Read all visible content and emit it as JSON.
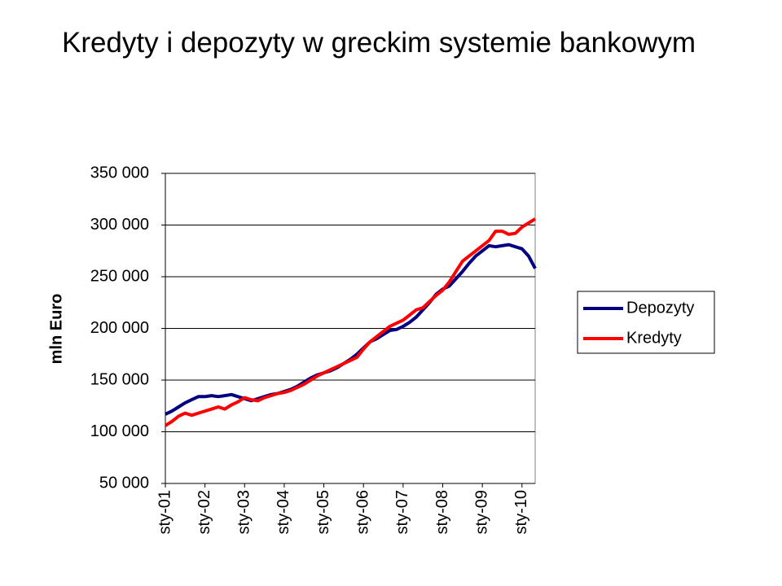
{
  "chart_data": {
    "type": "line",
    "title": "Kredyty i depozyty w greckim systemie bankowym",
    "y_label": "mln Euro",
    "categories": [
      "sty-01",
      null,
      null,
      null,
      null,
      null,
      "sty-02",
      null,
      null,
      null,
      null,
      null,
      "sty-03",
      null,
      null,
      null,
      null,
      null,
      "sty-04",
      null,
      null,
      null,
      null,
      null,
      "sty-05",
      null,
      null,
      null,
      null,
      null,
      "sty-06",
      null,
      null,
      null,
      null,
      null,
      "sty-07",
      null,
      null,
      null,
      null,
      null,
      "sty-08",
      null,
      null,
      null,
      null,
      null,
      "sty-09",
      null,
      null,
      null,
      null,
      null,
      "sty-10",
      null,
      null
    ],
    "series": [
      {
        "name": "Depozyty",
        "color": "#000080",
        "values": [
          117000,
          120000,
          124000,
          128000,
          131000,
          134000,
          134000,
          135000,
          134000,
          135000,
          136000,
          134000,
          132000,
          130000,
          132000,
          134000,
          136000,
          137000,
          139000,
          141000,
          144000,
          148000,
          152000,
          155000,
          157000,
          159000,
          162000,
          166000,
          170000,
          175000,
          181000,
          187000,
          190000,
          194000,
          198000,
          199000,
          202000,
          206000,
          211000,
          218000,
          225000,
          233000,
          238000,
          241000,
          248000,
          255000,
          263000,
          270000,
          275000,
          280000,
          279000,
          280000,
          281000,
          279000,
          277000,
          270000,
          258000
        ]
      },
      {
        "name": "Kredyty",
        "color": "#ff0000",
        "values": [
          106000,
          110000,
          115000,
          118000,
          116000,
          118000,
          120000,
          122000,
          124000,
          122000,
          126000,
          129000,
          133000,
          131000,
          130000,
          133000,
          135000,
          137000,
          138000,
          140000,
          143000,
          146000,
          150000,
          154000,
          157000,
          160000,
          163000,
          166000,
          169000,
          172000,
          180000,
          187000,
          192000,
          197000,
          202000,
          205000,
          208000,
          213000,
          218000,
          220000,
          226000,
          232000,
          237000,
          245000,
          255000,
          265000,
          270000,
          275000,
          280000,
          285000,
          294000,
          294000,
          291000,
          292000,
          298000,
          302000,
          306000
        ]
      }
    ],
    "ylim": [
      50000,
      350000
    ],
    "yticks": [
      {
        "value": 50000,
        "label": "50 000"
      },
      {
        "value": 100000,
        "label": "100 000"
      },
      {
        "value": 150000,
        "label": "150 000"
      },
      {
        "value": 200000,
        "label": "200 000"
      },
      {
        "value": 250000,
        "label": "250 000"
      },
      {
        "value": 300000,
        "label": "300 000"
      },
      {
        "value": 350000,
        "label": "350 000"
      }
    ],
    "grid": true,
    "legend": "right"
  }
}
